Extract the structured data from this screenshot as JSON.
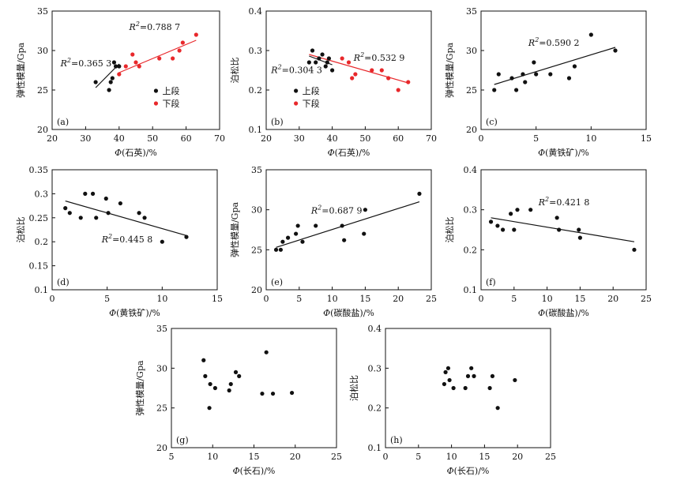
{
  "chart_data": [
    {
      "id": "a",
      "type": "scatter",
      "panel_label": "(a)",
      "xlabel": "Φ(石英)/%",
      "ylabel": "弹性模量/Gpa",
      "xlim": [
        20,
        70
      ],
      "ylim": [
        20,
        35
      ],
      "xticks": [
        20,
        30,
        40,
        50,
        60,
        70
      ],
      "yticks": [
        20,
        25,
        30,
        35
      ],
      "series": [
        {
          "name": "上段",
          "color": "#111111",
          "points": [
            [
              33,
              26
            ],
            [
              37,
              25
            ],
            [
              37.5,
              26
            ],
            [
              38,
              26.5
            ],
            [
              38.5,
              28.5
            ],
            [
              39,
              28
            ],
            [
              40,
              28
            ]
          ],
          "fit": [
            [
              33,
              25.3
            ],
            [
              40,
              28.3
            ]
          ]
        },
        {
          "name": "下段",
          "color": "#e8282b",
          "points": [
            [
              40,
              27
            ],
            [
              42,
              28
            ],
            [
              44,
              29.5
            ],
            [
              45,
              28.5
            ],
            [
              46,
              28
            ],
            [
              52,
              29
            ],
            [
              56,
              29
            ],
            [
              58,
              30
            ],
            [
              59,
              31
            ],
            [
              63,
              32
            ]
          ],
          "fit": [
            [
              40,
              27.2
            ],
            [
              63,
              31.3
            ]
          ]
        }
      ],
      "annotations": [
        {
          "id": "r2-upper",
          "text": "R²=0.365 3",
          "x": 22.5,
          "y": 28,
          "color": "#111111"
        },
        {
          "id": "r2-lower",
          "text": "R²=0.788 7",
          "x": 43,
          "y": 32.6,
          "color": "#111111"
        }
      ],
      "legend": {
        "position": "lower-right",
        "entries": [
          {
            "label": "上段",
            "color": "#111111"
          },
          {
            "label": "下段",
            "color": "#e8282b"
          }
        ]
      }
    },
    {
      "id": "b",
      "type": "scatter",
      "panel_label": "(b)",
      "xlabel": "Φ(石英)/%",
      "ylabel": "泊松比",
      "xlim": [
        20,
        70
      ],
      "ylim": [
        0.1,
        0.4
      ],
      "xticks": [
        20,
        30,
        40,
        50,
        60,
        70
      ],
      "yticks": [
        0.1,
        0.2,
        0.3,
        0.4
      ],
      "series": [
        {
          "name": "上段",
          "color": "#111111",
          "points": [
            [
              33,
              0.27
            ],
            [
              34,
              0.3
            ],
            [
              35,
              0.27
            ],
            [
              36,
              0.28
            ],
            [
              37,
              0.29
            ],
            [
              38,
              0.26
            ],
            [
              38.5,
              0.27
            ],
            [
              39,
              0.28
            ],
            [
              40,
              0.25
            ]
          ],
          "fit": [
            [
              33,
              0.286
            ],
            [
              40,
              0.264
            ]
          ]
        },
        {
          "name": "下段",
          "color": "#e8282b",
          "points": [
            [
              43,
              0.28
            ],
            [
              45,
              0.27
            ],
            [
              46,
              0.23
            ],
            [
              47,
              0.24
            ],
            [
              52,
              0.25
            ],
            [
              55,
              0.25
            ],
            [
              57,
              0.23
            ],
            [
              60,
              0.2
            ],
            [
              63,
              0.22
            ]
          ],
          "fit": [
            [
              33,
              0.29
            ],
            [
              63,
              0.218
            ]
          ]
        }
      ],
      "annotations": [
        {
          "id": "r2-upper",
          "text": "R²=0.304 3",
          "x": 21.5,
          "y": 0.243,
          "color": "#111111"
        },
        {
          "id": "r2-lower",
          "text": "R²=0.532 9",
          "x": 46.5,
          "y": 0.274,
          "color": "#111111"
        }
      ],
      "legend": {
        "position": "lower-left",
        "entries": [
          {
            "label": "上段",
            "color": "#111111"
          },
          {
            "label": "下段",
            "color": "#e8282b"
          }
        ]
      }
    },
    {
      "id": "c",
      "type": "scatter",
      "panel_label": "(c)",
      "xlabel": "Φ(黄铁矿)/%",
      "ylabel": "弹性模量/Gpa",
      "xlim": [
        0,
        15
      ],
      "ylim": [
        20,
        35
      ],
      "xticks": [
        0,
        5,
        10,
        15
      ],
      "yticks": [
        20,
        25,
        30,
        35
      ],
      "series": [
        {
          "name": "",
          "color": "#111111",
          "points": [
            [
              1.2,
              25
            ],
            [
              1.6,
              27
            ],
            [
              2.8,
              26.5
            ],
            [
              3.2,
              25
            ],
            [
              3.8,
              27
            ],
            [
              4.0,
              26
            ],
            [
              4.8,
              28.5
            ],
            [
              5.0,
              27
            ],
            [
              6.3,
              27
            ],
            [
              8.0,
              26.5
            ],
            [
              8.5,
              28
            ],
            [
              10,
              32
            ],
            [
              12.2,
              30
            ]
          ],
          "fit": [
            [
              1.2,
              25.7
            ],
            [
              12.2,
              30.4
            ]
          ]
        }
      ],
      "annotations": [
        {
          "id": "r2",
          "text": "R²=0.590 2",
          "x": 4.3,
          "y": 30.6,
          "color": "#111111"
        }
      ]
    },
    {
      "id": "d",
      "type": "scatter",
      "panel_label": "(d)",
      "xlabel": "Φ(黄铁矿)/%",
      "ylabel": "泊松比",
      "xlim": [
        0,
        15
      ],
      "ylim": [
        0.1,
        0.35
      ],
      "xticks": [
        0,
        5,
        10,
        15
      ],
      "yticks": [
        0.1,
        0.15,
        0.2,
        0.25,
        0.3,
        0.35
      ],
      "series": [
        {
          "name": "",
          "color": "#111111",
          "points": [
            [
              1.2,
              0.27
            ],
            [
              1.6,
              0.26
            ],
            [
              2.6,
              0.25
            ],
            [
              3.0,
              0.3
            ],
            [
              3.7,
              0.3
            ],
            [
              4.0,
              0.25
            ],
            [
              4.9,
              0.29
            ],
            [
              5.1,
              0.26
            ],
            [
              6.2,
              0.28
            ],
            [
              7.9,
              0.26
            ],
            [
              8.4,
              0.25
            ],
            [
              10.0,
              0.2
            ],
            [
              12.2,
              0.21
            ]
          ],
          "fit": [
            [
              1.2,
              0.285
            ],
            [
              12.2,
              0.213
            ]
          ]
        }
      ],
      "annotations": [
        {
          "id": "r2",
          "text": "R²=0.445 8",
          "x": 4.5,
          "y": 0.199,
          "color": "#111111"
        }
      ]
    },
    {
      "id": "e",
      "type": "scatter",
      "panel_label": "(e)",
      "xlabel": "Φ(碳酸盐)/%",
      "ylabel": "弹性模量/Gpa",
      "xlim": [
        0,
        25
      ],
      "ylim": [
        20,
        35
      ],
      "xticks": [
        0,
        5,
        10,
        15,
        20,
        25
      ],
      "yticks": [
        20,
        25,
        30,
        35
      ],
      "series": [
        {
          "name": "",
          "color": "#111111",
          "points": [
            [
              1.5,
              25
            ],
            [
              2.2,
              25
            ],
            [
              2.5,
              26
            ],
            [
              3.3,
              26.5
            ],
            [
              4.5,
              27
            ],
            [
              4.8,
              28
            ],
            [
              5.5,
              26
            ],
            [
              7.5,
              28
            ],
            [
              11.5,
              28
            ],
            [
              11.8,
              26.2
            ],
            [
              14.8,
              27
            ],
            [
              15,
              30
            ],
            [
              23.2,
              32
            ]
          ],
          "fit": [
            [
              1.5,
              25.3
            ],
            [
              23.2,
              31
            ]
          ]
        }
      ],
      "annotations": [
        {
          "id": "r2",
          "text": "R²=0.687 9",
          "x": 6.8,
          "y": 29.5,
          "color": "#111111"
        }
      ]
    },
    {
      "id": "f",
      "type": "scatter",
      "panel_label": "(f)",
      "xlabel": "Φ(碳酸盐)/%",
      "ylabel": "泊松比",
      "xlim": [
        0,
        25
      ],
      "ylim": [
        0.1,
        0.4
      ],
      "xticks": [
        0,
        5,
        10,
        15,
        20,
        25
      ],
      "yticks": [
        0.1,
        0.2,
        0.3,
        0.4
      ],
      "series": [
        {
          "name": "",
          "color": "#111111",
          "points": [
            [
              1.5,
              0.27
            ],
            [
              2.5,
              0.26
            ],
            [
              3.3,
              0.25
            ],
            [
              4.5,
              0.29
            ],
            [
              5.0,
              0.25
            ],
            [
              5.5,
              0.3
            ],
            [
              7.5,
              0.3
            ],
            [
              11.5,
              0.28
            ],
            [
              11.8,
              0.25
            ],
            [
              14.8,
              0.25
            ],
            [
              15,
              0.23
            ],
            [
              23.2,
              0.2
            ]
          ],
          "fit": [
            [
              1.5,
              0.28
            ],
            [
              23.2,
              0.22
            ]
          ]
        }
      ],
      "annotations": [
        {
          "id": "r2",
          "text": "R²=0.421 8",
          "x": 8.7,
          "y": 0.311,
          "color": "#111111"
        }
      ]
    },
    {
      "id": "g",
      "type": "scatter",
      "panel_label": "(g)",
      "xlabel": "Φ(长石)/%",
      "ylabel": "弹性模量/Gpa",
      "xlim": [
        5,
        25
      ],
      "ylim": [
        20,
        35
      ],
      "xticks": [
        5,
        10,
        15,
        20,
        25
      ],
      "yticks": [
        20,
        25,
        30,
        35
      ],
      "series": [
        {
          "name": "",
          "color": "#111111",
          "points": [
            [
              8.9,
              31
            ],
            [
              9.1,
              29
            ],
            [
              9.6,
              25
            ],
            [
              9.7,
              28
            ],
            [
              10.3,
              27.5
            ],
            [
              12.0,
              27.2
            ],
            [
              12.2,
              28
            ],
            [
              12.8,
              29.5
            ],
            [
              13.2,
              29
            ],
            [
              16.0,
              26.8
            ],
            [
              16.5,
              32
            ],
            [
              17.3,
              26.8
            ],
            [
              19.6,
              26.9
            ]
          ]
        }
      ],
      "annotations": []
    },
    {
      "id": "h",
      "type": "scatter",
      "panel_label": "(h)",
      "xlabel": "Φ(长石)/%",
      "ylabel": "泊松比",
      "xlim": [
        0,
        25
      ],
      "ylim": [
        0.1,
        0.4
      ],
      "xticks": [
        0,
        5,
        10,
        15,
        20,
        25
      ],
      "yticks": [
        0.1,
        0.2,
        0.3,
        0.4
      ],
      "series": [
        {
          "name": "",
          "color": "#111111",
          "points": [
            [
              8.9,
              0.26
            ],
            [
              9.1,
              0.29
            ],
            [
              9.5,
              0.3
            ],
            [
              9.7,
              0.27
            ],
            [
              10.3,
              0.25
            ],
            [
              12.1,
              0.25
            ],
            [
              12.5,
              0.28
            ],
            [
              13.0,
              0.3
            ],
            [
              13.4,
              0.28
            ],
            [
              15.8,
              0.25
            ],
            [
              16.2,
              0.28
            ],
            [
              17.0,
              0.2
            ],
            [
              19.6,
              0.27
            ]
          ]
        }
      ],
      "annotations": []
    }
  ]
}
